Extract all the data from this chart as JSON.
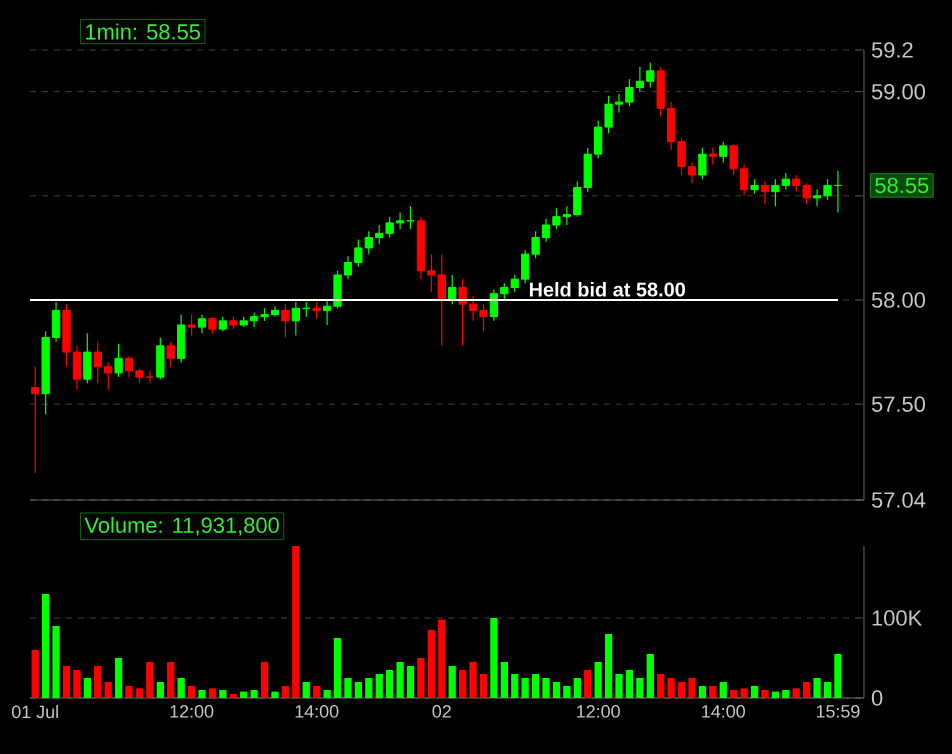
{
  "chart_data": [
    {
      "type": "candlestick",
      "title": "1min: 58.55",
      "categories": [
        null,
        null,
        null,
        null,
        null,
        null,
        null,
        null,
        null,
        null,
        null,
        null,
        null,
        null,
        null,
        null,
        null,
        null,
        null,
        null,
        null,
        null,
        null,
        null,
        null,
        null,
        null,
        null,
        null,
        null,
        null,
        null,
        null,
        null,
        null,
        null,
        null,
        null,
        null,
        null,
        null,
        null,
        null,
        null,
        null,
        null,
        null,
        null,
        null,
        null,
        null,
        null,
        null,
        null,
        null,
        null,
        null,
        null,
        null,
        null,
        null,
        null,
        null,
        null,
        null,
        null,
        null,
        null,
        null,
        null,
        null,
        null,
        null,
        null,
        null,
        null,
        null,
        null
      ],
      "ohlc": [
        [
          57.58,
          57.68,
          57.17,
          57.55
        ],
        [
          57.55,
          57.85,
          57.45,
          57.82
        ],
        [
          57.82,
          57.99,
          57.8,
          57.95
        ],
        [
          57.95,
          57.98,
          57.68,
          57.75
        ],
        [
          57.75,
          57.78,
          57.57,
          57.62
        ],
        [
          57.62,
          57.84,
          57.6,
          57.75
        ],
        [
          57.75,
          57.8,
          57.6,
          57.68
        ],
        [
          57.68,
          57.7,
          57.57,
          57.65
        ],
        [
          57.65,
          57.79,
          57.63,
          57.72
        ],
        [
          57.72,
          57.73,
          57.63,
          57.66
        ],
        [
          57.66,
          57.67,
          57.6,
          57.63
        ],
        [
          57.63,
          57.66,
          57.6,
          57.63
        ],
        [
          57.63,
          57.82,
          57.62,
          57.78
        ],
        [
          57.78,
          57.8,
          57.68,
          57.72
        ],
        [
          57.72,
          57.93,
          57.7,
          57.88
        ],
        [
          57.88,
          57.93,
          57.83,
          57.87
        ],
        [
          57.87,
          57.93,
          57.84,
          57.91
        ],
        [
          57.91,
          57.92,
          57.84,
          57.86
        ],
        [
          57.86,
          57.92,
          57.85,
          57.9
        ],
        [
          57.9,
          57.92,
          57.86,
          57.88
        ],
        [
          57.88,
          57.92,
          57.87,
          57.9
        ],
        [
          57.9,
          57.94,
          57.87,
          57.92
        ],
        [
          57.92,
          57.96,
          57.9,
          57.93
        ],
        [
          57.93,
          57.97,
          57.92,
          57.95
        ],
        [
          57.95,
          57.98,
          57.82,
          57.9
        ],
        [
          57.9,
          57.99,
          57.83,
          57.96
        ],
        [
          57.96,
          57.99,
          57.92,
          57.96
        ],
        [
          57.96,
          57.99,
          57.91,
          57.95
        ],
        [
          57.95,
          58.0,
          57.88,
          57.97
        ],
        [
          57.97,
          58.14,
          57.96,
          58.12
        ],
        [
          58.12,
          58.21,
          58.1,
          58.18
        ],
        [
          58.18,
          58.29,
          58.16,
          58.25
        ],
        [
          58.25,
          58.33,
          58.22,
          58.3
        ],
        [
          58.3,
          58.36,
          58.27,
          58.32
        ],
        [
          58.32,
          58.4,
          58.3,
          58.37
        ],
        [
          58.37,
          58.42,
          58.34,
          58.38
        ],
        [
          58.38,
          58.45,
          58.34,
          58.38
        ],
        [
          58.38,
          58.4,
          58.1,
          58.14
        ],
        [
          58.14,
          58.22,
          58.04,
          58.12
        ],
        [
          58.12,
          58.22,
          57.78,
          58.0
        ],
        [
          58.0,
          58.12,
          57.98,
          58.06
        ],
        [
          58.06,
          58.1,
          57.78,
          57.98
        ],
        [
          57.98,
          58.02,
          57.9,
          57.95
        ],
        [
          57.95,
          57.98,
          57.85,
          57.92
        ],
        [
          57.92,
          58.05,
          57.9,
          58.03
        ],
        [
          58.03,
          58.08,
          58.0,
          58.06
        ],
        [
          58.06,
          58.12,
          58.04,
          58.1
        ],
        [
          58.1,
          58.24,
          58.08,
          58.22
        ],
        [
          58.22,
          58.33,
          58.2,
          58.3
        ],
        [
          58.3,
          58.39,
          58.28,
          58.36
        ],
        [
          58.36,
          58.44,
          58.34,
          58.4
        ],
        [
          58.4,
          58.45,
          58.36,
          58.41
        ],
        [
          58.41,
          58.57,
          58.4,
          58.54
        ],
        [
          58.54,
          58.73,
          58.52,
          58.7
        ],
        [
          58.7,
          58.86,
          58.68,
          58.83
        ],
        [
          58.83,
          58.98,
          58.8,
          58.94
        ],
        [
          58.94,
          58.99,
          58.9,
          58.95
        ],
        [
          58.95,
          59.06,
          58.93,
          59.02
        ],
        [
          59.02,
          59.12,
          59.0,
          59.05
        ],
        [
          59.05,
          59.14,
          59.02,
          59.1
        ],
        [
          59.1,
          59.12,
          58.88,
          58.92
        ],
        [
          58.92,
          58.95,
          58.72,
          58.76
        ],
        [
          58.76,
          58.78,
          58.6,
          58.64
        ],
        [
          58.64,
          58.66,
          58.56,
          58.6
        ],
        [
          58.6,
          58.73,
          58.58,
          58.7
        ],
        [
          58.7,
          58.73,
          58.65,
          58.69
        ],
        [
          58.69,
          58.76,
          58.66,
          58.74
        ],
        [
          58.74,
          58.75,
          58.6,
          58.63
        ],
        [
          58.63,
          58.65,
          58.5,
          58.53
        ],
        [
          58.53,
          58.58,
          58.51,
          58.55
        ],
        [
          58.55,
          58.57,
          58.46,
          58.52
        ],
        [
          58.52,
          58.58,
          58.45,
          58.55
        ],
        [
          58.55,
          58.61,
          58.53,
          58.58
        ],
        [
          58.58,
          58.6,
          58.52,
          58.55
        ],
        [
          58.55,
          58.56,
          58.46,
          58.49
        ],
        [
          58.49,
          58.53,
          58.45,
          58.5
        ],
        [
          58.5,
          58.58,
          58.48,
          58.55
        ],
        [
          58.55,
          58.62,
          58.42,
          58.55
        ]
      ],
      "colors": [
        "#ff0000",
        "#00ff00",
        "#00ff00",
        "#ff0000",
        "#ff0000",
        "#00ff00",
        "#ff0000",
        "#ff0000",
        "#00ff00",
        "#ff0000",
        "#ff0000",
        "#ff0000",
        "#00ff00",
        "#ff0000",
        "#00ff00",
        "#ff0000",
        "#00ff00",
        "#ff0000",
        "#00ff00",
        "#ff0000",
        "#00ff00",
        "#00ff00",
        "#00ff00",
        "#00ff00",
        "#ff0000",
        "#00ff00",
        "#00ff00",
        "#ff0000",
        "#00ff00",
        "#00ff00",
        "#00ff00",
        "#00ff00",
        "#00ff00",
        "#00ff00",
        "#00ff00",
        "#00ff00",
        "#00ff00",
        "#ff0000",
        "#ff0000",
        "#ff0000",
        "#00ff00",
        "#ff0000",
        "#ff0000",
        "#ff0000",
        "#00ff00",
        "#00ff00",
        "#00ff00",
        "#00ff00",
        "#00ff00",
        "#00ff00",
        "#00ff00",
        "#00ff00",
        "#00ff00",
        "#00ff00",
        "#00ff00",
        "#00ff00",
        "#00ff00",
        "#00ff00",
        "#00ff00",
        "#00ff00",
        "#ff0000",
        "#ff0000",
        "#ff0000",
        "#ff0000",
        "#00ff00",
        "#ff0000",
        "#00ff00",
        "#ff0000",
        "#ff0000",
        "#00ff00",
        "#ff0000",
        "#00ff00",
        "#00ff00",
        "#ff0000",
        "#ff0000",
        "#00ff00",
        "#00ff00",
        "#00ff00"
      ],
      "ylim": [
        57.04,
        59.2
      ],
      "yticks": [
        {
          "value": 57.04,
          "label": "57.04"
        },
        {
          "value": 57.5,
          "label": "57.50"
        },
        {
          "value": 58,
          "label": "58.00"
        },
        {
          "value": 58.5,
          "label": null
        },
        {
          "value": 59,
          "label": "59.00"
        },
        59.2
      ],
      "grid": "y",
      "tick_labels": "y",
      "ref_lines": [
        {
          "axis": "y",
          "value": 58,
          "label": "Held bid at 58.00",
          "color": "#ffffff"
        }
      ],
      "annotations": [
        "58.55"
      ]
    },
    {
      "type": "bar",
      "title": "Volume: 11,931,800",
      "categories": [
        "01 Jul",
        null,
        null,
        null,
        null,
        null,
        null,
        null,
        null,
        null,
        null,
        null,
        null,
        null,
        null,
        "12:00",
        null,
        null,
        null,
        null,
        null,
        null,
        null,
        null,
        null,
        null,
        null,
        "14:00",
        null,
        null,
        null,
        null,
        null,
        null,
        null,
        null,
        null,
        null,
        null,
        "02",
        null,
        null,
        null,
        null,
        null,
        null,
        null,
        null,
        null,
        null,
        null,
        null,
        null,
        null,
        "12:00",
        null,
        null,
        null,
        null,
        null,
        null,
        null,
        null,
        null,
        null,
        null,
        "14:00",
        null,
        null,
        null,
        null,
        null,
        null,
        null,
        null,
        null,
        null,
        "15:59"
      ],
      "values": [
        60000,
        130000,
        90000,
        40000,
        35000,
        25000,
        40000,
        20000,
        50000,
        15000,
        12000,
        45000,
        20000,
        45000,
        25000,
        15000,
        10000,
        12000,
        10000,
        5000,
        8000,
        10000,
        45000,
        8000,
        15000,
        190000,
        20000,
        15000,
        10000,
        75000,
        25000,
        20000,
        25000,
        30000,
        35000,
        45000,
        40000,
        50000,
        85000,
        98000,
        40000,
        35000,
        45000,
        30000,
        100000,
        45000,
        30000,
        25000,
        30000,
        25000,
        20000,
        15000,
        25000,
        35000,
        45000,
        80000,
        30000,
        35000,
        25000,
        55000,
        30000,
        25000,
        20000,
        25000,
        15000,
        15000,
        20000,
        10000,
        12000,
        15000,
        10000,
        8000,
        10000,
        12000,
        20000,
        25000,
        20000,
        55000
      ],
      "colors": [
        "#ff0000",
        "#00ff00",
        "#00ff00",
        "#ff0000",
        "#ff0000",
        "#00ff00",
        "#ff0000",
        "#ff0000",
        "#00ff00",
        "#ff0000",
        "#ff0000",
        "#ff0000",
        "#00ff00",
        "#ff0000",
        "#00ff00",
        "#ff0000",
        "#00ff00",
        "#ff0000",
        "#00ff00",
        "#ff0000",
        "#00ff00",
        "#00ff00",
        "#ff0000",
        "#00ff00",
        "#ff0000",
        "#ff0000",
        "#00ff00",
        "#ff0000",
        "#00ff00",
        "#00ff00",
        "#00ff00",
        "#00ff00",
        "#00ff00",
        "#00ff00",
        "#00ff00",
        "#00ff00",
        "#00ff00",
        "#ff0000",
        "#ff0000",
        "#ff0000",
        "#00ff00",
        "#ff0000",
        "#ff0000",
        "#ff0000",
        "#00ff00",
        "#00ff00",
        "#00ff00",
        "#00ff00",
        "#00ff00",
        "#00ff00",
        "#00ff00",
        "#00ff00",
        "#00ff00",
        "#ff0000",
        "#00ff00",
        "#00ff00",
        "#00ff00",
        "#00ff00",
        "#00ff00",
        "#00ff00",
        "#ff0000",
        "#ff0000",
        "#ff0000",
        "#ff0000",
        "#00ff00",
        "#ff0000",
        "#00ff00",
        "#ff0000",
        "#ff0000",
        "#00ff00",
        "#ff0000",
        "#00ff00",
        "#00ff00",
        "#ff0000",
        "#ff0000",
        "#00ff00",
        "#00ff00",
        "#00ff00"
      ],
      "ylim": [
        0,
        190000
      ],
      "yticks": [
        {
          "value": 0,
          "label": "0"
        },
        {
          "value": 100000,
          "label": "100K"
        }
      ],
      "grid": "y"
    }
  ]
}
